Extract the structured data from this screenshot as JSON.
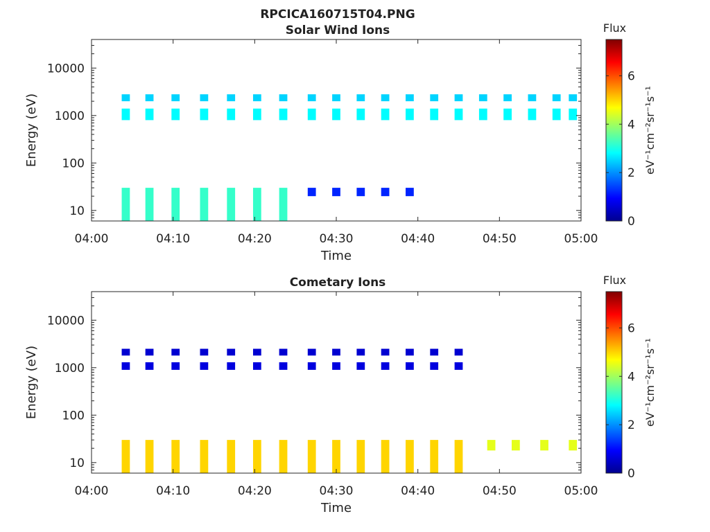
{
  "figure": {
    "filename_title": "RPCICA160715T04.PNG"
  },
  "chart_data": [
    {
      "type": "heatmap",
      "title": "Solar Wind Ions",
      "xlabel": "Time",
      "ylabel": "Energy (eV)",
      "x_ticks": [
        "04:00",
        "04:10",
        "04:20",
        "04:30",
        "04:40",
        "04:50",
        "05:00"
      ],
      "xlim_minutes": [
        0,
        60
      ],
      "yscale": "log",
      "ylim": [
        6,
        40000
      ],
      "y_ticks": [
        10,
        100,
        1000,
        10000
      ],
      "y_tick_labels": [
        "10",
        "100",
        "1000",
        "10000"
      ],
      "colorbar": {
        "title": "Flux",
        "label": "eV⁻¹cm⁻²sr⁻¹s⁻¹",
        "range": [
          0,
          7.5
        ],
        "ticks": [
          0,
          2,
          4,
          6
        ],
        "tick_labels": [
          "0",
          "2",
          "4",
          "6"
        ],
        "colormap": "jet"
      },
      "grid": false,
      "bands": [
        {
          "e_min": 6,
          "e_max": 30,
          "times": [
            4.2,
            7.1,
            10.3,
            13.8,
            17.1,
            20.3,
            23.5
          ],
          "value": 3.2
        },
        {
          "e_min": 20,
          "e_max": 30,
          "times": [
            27.0,
            30.0,
            33.0,
            36.0,
            39.0
          ],
          "value": 1.2
        },
        {
          "e_min": 800,
          "e_max": 1400,
          "times": [
            4.2,
            7.1,
            10.3,
            13.8,
            17.1,
            20.3,
            23.5,
            27.0,
            30.0,
            33.0,
            36.0,
            39.0,
            42.0,
            45.0,
            48.0,
            51.0,
            54.0,
            57.0,
            59.0
          ],
          "value": 2.8
        },
        {
          "e_min": 2000,
          "e_max": 2800,
          "times": [
            4.2,
            7.1,
            10.3,
            13.8,
            17.1,
            20.3,
            23.5,
            27.0,
            30.0,
            33.0,
            36.0,
            39.0,
            42.0,
            45.0,
            48.0,
            51.0,
            54.0,
            57.0,
            59.0
          ],
          "value": 2.5
        }
      ]
    },
    {
      "type": "heatmap",
      "title": "Cometary Ions",
      "xlabel": "Time",
      "ylabel": "Energy (eV)",
      "x_ticks": [
        "04:00",
        "04:10",
        "04:20",
        "04:30",
        "04:40",
        "04:50",
        "05:00"
      ],
      "xlim_minutes": [
        0,
        60
      ],
      "yscale": "log",
      "ylim": [
        6,
        40000
      ],
      "y_ticks": [
        10,
        100,
        1000,
        10000
      ],
      "y_tick_labels": [
        "10",
        "100",
        "1000",
        "10000"
      ],
      "colorbar": {
        "title": "Flux",
        "label": "eV⁻¹cm⁻²sr⁻¹s⁻¹",
        "range": [
          0,
          7.5
        ],
        "ticks": [
          0,
          2,
          4,
          6
        ],
        "tick_labels": [
          "0",
          "2",
          "4",
          "6"
        ],
        "colormap": "jet"
      },
      "grid": false,
      "bands": [
        {
          "e_min": 6,
          "e_max": 30,
          "times": [
            4.2,
            7.1,
            10.3,
            13.8,
            17.1,
            20.3,
            23.5,
            27.0,
            30.0,
            33.0,
            36.0,
            39.0,
            42.0,
            45.0
          ],
          "value": 5.0
        },
        {
          "e_min": 18,
          "e_max": 30,
          "times": [
            49.0,
            52.0,
            55.5,
            59.0
          ],
          "value": 4.5
        },
        {
          "e_min": 900,
          "e_max": 1300,
          "times": [
            4.2,
            7.1,
            10.3,
            13.8,
            17.1,
            20.3,
            23.5,
            27.0,
            30.0,
            33.0,
            36.0,
            39.0,
            42.0,
            45.0
          ],
          "value": 0.7
        },
        {
          "e_min": 1800,
          "e_max": 2500,
          "times": [
            4.2,
            7.1,
            10.3,
            13.8,
            17.1,
            20.3,
            23.5,
            27.0,
            30.0,
            33.0,
            36.0,
            39.0,
            42.0,
            45.0
          ],
          "value": 0.6
        }
      ]
    }
  ]
}
